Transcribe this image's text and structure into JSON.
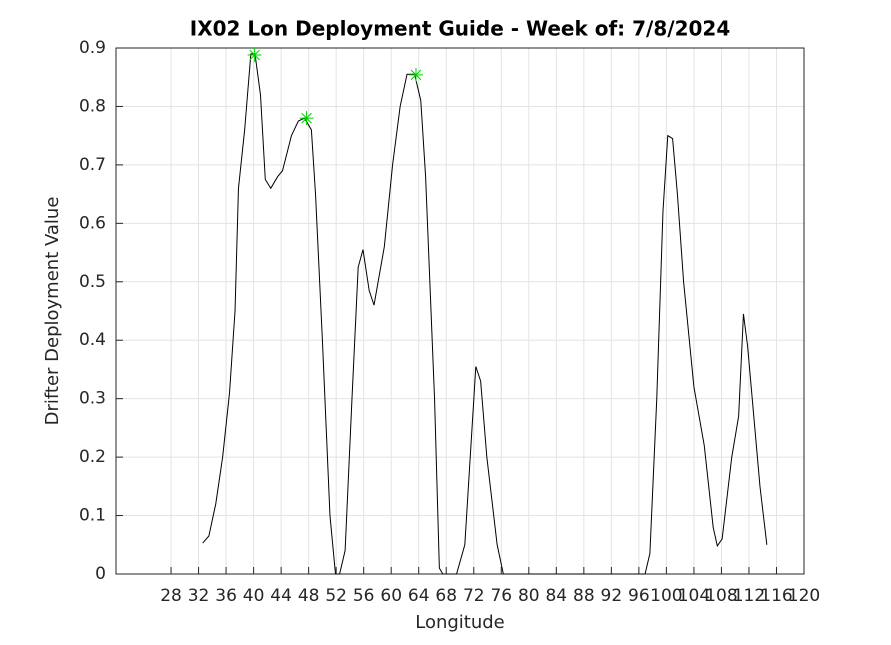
{
  "chart_data": {
    "type": "line",
    "title": "IX02 Lon Deployment Guide - Week of: 7/8/2024",
    "x_label": "Longitude",
    "y_label": "Drifter Deployment Value",
    "x": [
      32.6,
      33.5,
      34.5,
      35.5,
      36.5,
      37.3,
      37.8,
      38.7,
      39.6,
      40.2,
      41.0,
      41.7,
      42.5,
      43.5,
      44.2,
      45.5,
      46.5,
      47.4,
      48.4,
      49.0,
      50.0,
      51.1,
      51.9,
      52.5,
      53.3,
      54.3,
      55.2,
      55.9,
      56.8,
      57.5,
      59.0,
      60.2,
      61.3,
      62.3,
      63.4,
      64.3,
      65.0,
      66.3,
      67.0,
      67.5,
      69.5,
      70.7,
      72.3,
      73.0,
      73.9,
      75.4,
      76.3,
      96.9,
      97.6,
      98.6,
      99.5,
      100.2,
      100.9,
      101.6,
      102.5,
      104.0,
      105.5,
      106.8,
      107.4,
      108.1,
      109.5,
      110.5,
      111.2,
      111.8,
      113.6,
      114.6
    ],
    "series": [
      {
        "color": "#000000",
        "values": [
          0.053,
          0.065,
          0.12,
          0.2,
          0.31,
          0.45,
          0.66,
          0.76,
          0.89,
          0.89,
          0.82,
          0.675,
          0.66,
          0.68,
          0.69,
          0.75,
          0.775,
          0.78,
          0.76,
          0.65,
          0.4,
          0.1,
          0.0,
          0.0,
          0.04,
          0.3,
          0.525,
          0.555,
          0.485,
          0.46,
          0.56,
          0.7,
          0.8,
          0.855,
          0.855,
          0.81,
          0.68,
          0.3,
          0.01,
          0.0,
          0.0,
          0.05,
          0.355,
          0.33,
          0.2,
          0.05,
          0.0,
          0.0,
          0.035,
          0.3,
          0.62,
          0.75,
          0.745,
          0.65,
          0.5,
          0.32,
          0.22,
          0.08,
          0.048,
          0.06,
          0.2,
          0.27,
          0.445,
          0.39,
          0.15,
          0.05
        ]
      }
    ],
    "peaks": {
      "color": "#00d000",
      "x": [
        40.15,
        47.7,
        63.6
      ],
      "values": [
        0.888,
        0.78,
        0.854
      ]
    },
    "xlim": [
      20,
      120
    ],
    "ylim": [
      0,
      0.9
    ],
    "xticks": [
      28,
      32,
      36,
      40,
      44,
      48,
      52,
      56,
      60,
      64,
      68,
      72,
      76,
      80,
      84,
      88,
      92,
      96,
      100,
      104,
      108,
      112,
      116,
      120
    ],
    "yticks": [
      0,
      0.1,
      0.2,
      0.3,
      0.4,
      0.5,
      0.6,
      0.7,
      0.8,
      0.9
    ],
    "grid": true
  }
}
